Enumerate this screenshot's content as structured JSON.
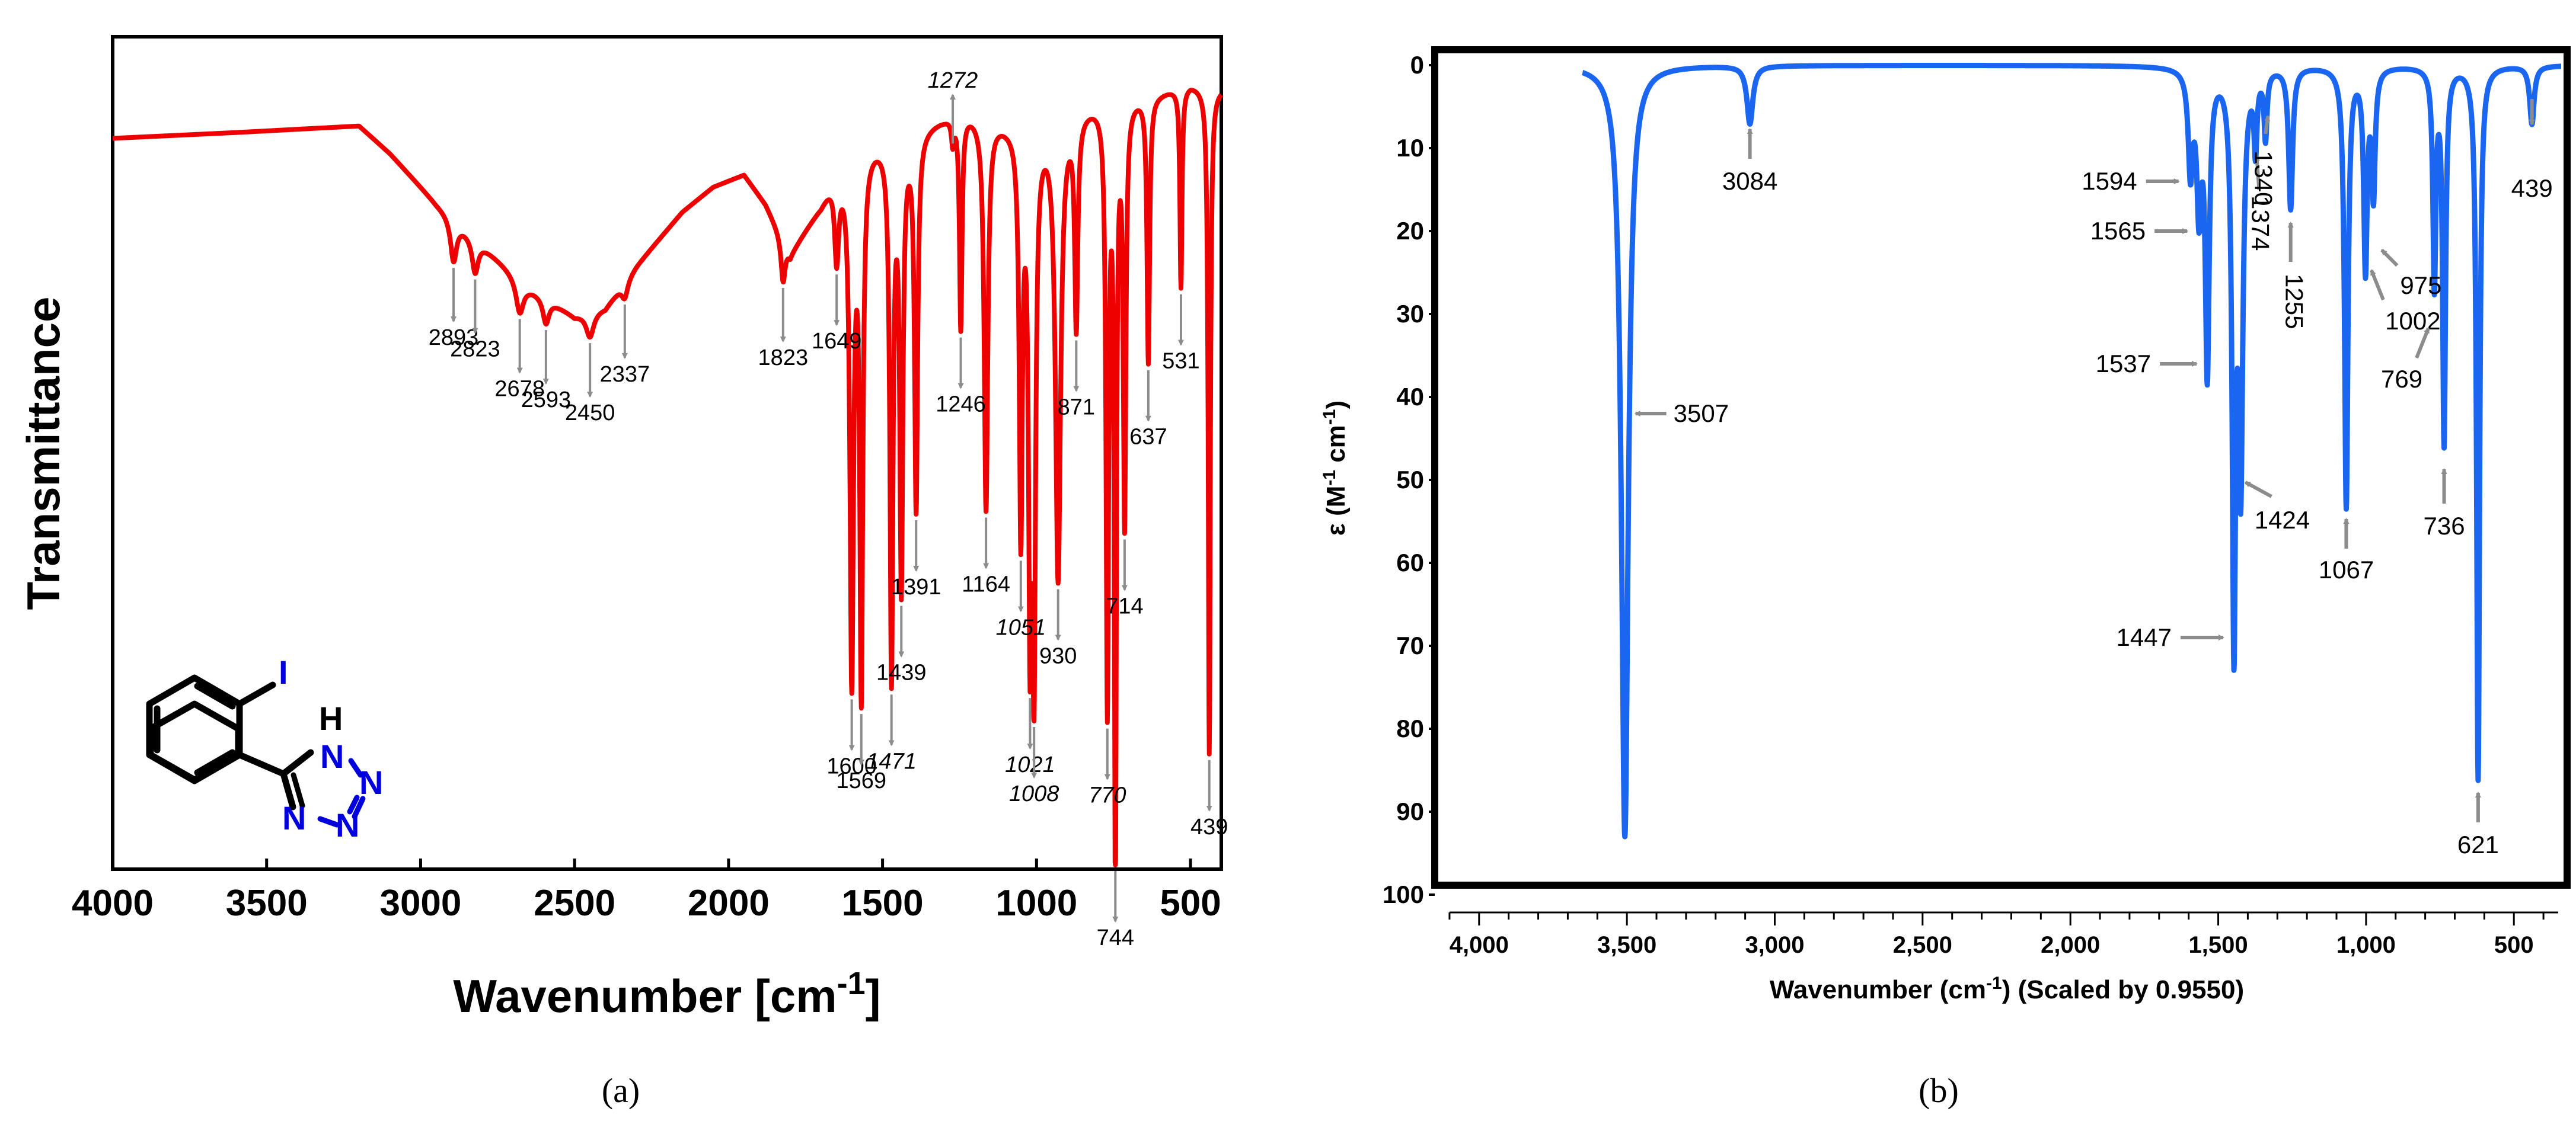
{
  "chart_data": [
    {
      "type": "line",
      "panel_caption": "(a)",
      "title": "",
      "xlabel": "Wavenumber [cm",
      "xlabel_superscript": "-1",
      "xlabel_suffix": "]",
      "ylabel": "Transmittance",
      "xlim": [
        4000,
        400
      ],
      "ylim": [
        0,
        1
      ],
      "x_ticks": [
        4000,
        3500,
        3000,
        2500,
        2000,
        1500,
        1000,
        500
      ],
      "series": [
        {
          "name": "FTIR spectrum",
          "color": "#ee0000",
          "baseline": [
            [
              4000,
              0.878
            ],
            [
              3600,
              0.885
            ],
            [
              3200,
              0.893
            ],
            [
              3100,
              0.86
            ],
            [
              2950,
              0.8
            ],
            [
              2800,
              0.75
            ],
            [
              2650,
              0.7
            ],
            [
              2500,
              0.665
            ],
            [
              2400,
              0.675
            ],
            [
              2300,
              0.725
            ],
            [
              2150,
              0.79
            ],
            [
              2050,
              0.82
            ],
            [
              1950,
              0.835
            ],
            [
              1880,
              0.8
            ],
            [
              1800,
              0.74
            ],
            [
              1700,
              0.8
            ],
            [
              1660,
              0.835
            ],
            [
              1600,
              0.86
            ],
            [
              1550,
              0.875
            ],
            [
              1500,
              0.88
            ],
            [
              1400,
              0.89
            ],
            [
              1300,
              0.905
            ],
            [
              1250,
              0.915
            ],
            [
              1200,
              0.91
            ],
            [
              1100,
              0.9
            ],
            [
              1000,
              0.895
            ],
            [
              900,
              0.91
            ],
            [
              800,
              0.925
            ],
            [
              700,
              0.93
            ],
            [
              600,
              0.935
            ],
            [
              500,
              0.945
            ],
            [
              440,
              0.94
            ],
            [
              400,
              0.94
            ]
          ],
          "bands": [
            [
              2893,
              0.05,
              12
            ],
            [
              2823,
              0.04,
              12
            ],
            [
              2678,
              0.04,
              15
            ],
            [
              2593,
              0.03,
              12
            ],
            [
              2450,
              0.03,
              15
            ],
            [
              2337,
              0.02,
              12
            ],
            [
              1823,
              0.05,
              8
            ],
            [
              1649,
              0.1,
              8
            ],
            [
              1600,
              0.62,
              7
            ],
            [
              1569,
              0.64,
              6
            ],
            [
              1471,
              0.64,
              6
            ],
            [
              1439,
              0.53,
              6
            ],
            [
              1391,
              0.45,
              6
            ],
            [
              1272,
              0.03,
              5
            ],
            [
              1246,
              0.26,
              5
            ],
            [
              1164,
              0.47,
              7
            ],
            [
              1051,
              0.48,
              6
            ],
            [
              1021,
              0.55,
              6
            ],
            [
              1008,
              0.6,
              6
            ],
            [
              930,
              0.55,
              10
            ],
            [
              871,
              0.25,
              6
            ],
            [
              770,
              0.72,
              5
            ],
            [
              744,
              0.93,
              4
            ],
            [
              714,
              0.5,
              5
            ],
            [
              637,
              0.32,
              5
            ],
            [
              531,
              0.24,
              4
            ],
            [
              439,
              0.8,
              4
            ]
          ]
        }
      ],
      "peak_labels": [
        {
          "text": "2893",
          "x": 2893
        },
        {
          "text": "2823",
          "x": 2823
        },
        {
          "text": "2678",
          "x": 2678
        },
        {
          "text": "2593",
          "x": 2593
        },
        {
          "text": "2450",
          "x": 2450
        },
        {
          "text": "2337",
          "x": 2337
        },
        {
          "text": "1823",
          "x": 1823
        },
        {
          "text": "1649",
          "x": 1649
        },
        {
          "text": "1600",
          "x": 1600
        },
        {
          "text": "1569",
          "x": 1569
        },
        {
          "text": "1471",
          "x": 1471,
          "italic": true
        },
        {
          "text": "1439",
          "x": 1439
        },
        {
          "text": "1391",
          "x": 1391
        },
        {
          "text": "1272",
          "x": 1272,
          "italic": true
        },
        {
          "text": "1246",
          "x": 1246
        },
        {
          "text": "1164",
          "x": 1164
        },
        {
          "text": "1051",
          "x": 1051,
          "italic": true
        },
        {
          "text": "1021",
          "x": 1021,
          "italic": true
        },
        {
          "text": "1008",
          "x": 1008,
          "italic": true
        },
        {
          "text": "930",
          "x": 930
        },
        {
          "text": "871",
          "x": 871
        },
        {
          "text": "770",
          "x": 770,
          "italic": true
        },
        {
          "text": "744",
          "x": 744
        },
        {
          "text": "714",
          "x": 714
        },
        {
          "text": "637",
          "x": 637
        },
        {
          "text": "531",
          "x": 531
        },
        {
          "text": "439",
          "x": 439
        }
      ],
      "molecule": {
        "substituent_label": "I",
        "nh_label": "H",
        "n_labels": [
          "N",
          "N",
          "N",
          "N"
        ]
      }
    },
    {
      "type": "line",
      "panel_caption": "(b)",
      "title": "",
      "xlabel": "Wavenumber (cm",
      "xlabel_superscript": "-1",
      "xlabel_suffix": ") (Scaled by 0.9550)",
      "ylabel_prefix": "ε (M",
      "ylabel_mid": " cm",
      "ylabel_suffix": ")",
      "ylabel_superscript": "-1",
      "xlim": [
        4150,
        320
      ],
      "ylim": [
        100,
        0
      ],
      "x_ticks": [
        4000,
        3500,
        3000,
        2500,
        2000,
        1500,
        1000,
        500
      ],
      "x_tick_labels": [
        "4,000",
        "3,500",
        "3,000",
        "2,500",
        "2,000",
        "1,500",
        "1,000",
        "500"
      ],
      "y_ticks": [
        0,
        10,
        20,
        30,
        40,
        50,
        60,
        70,
        80,
        90,
        100
      ],
      "series": [
        {
          "name": "Computed IR spectrum",
          "color": "#1a66f0",
          "x_range": [
            3650,
            340
          ],
          "bands": [
            [
              3507,
              93,
              14
            ],
            [
              3084,
              7,
              12
            ],
            [
              1594,
              12,
              9
            ],
            [
              1565,
              16,
              9
            ],
            [
              1537,
              36,
              8
            ],
            [
              1447,
              66,
              7
            ],
            [
              1424,
              48,
              9
            ],
            [
              1374,
              9,
              6
            ],
            [
              1340,
              8,
              6
            ],
            [
              1255,
              17,
              8
            ],
            [
              1067,
              53,
              7
            ],
            [
              1002,
              24,
              7
            ],
            [
              975,
              15,
              7
            ],
            [
              769,
              26,
              6
            ],
            [
              736,
              45,
              6
            ],
            [
              621,
              86,
              6
            ],
            [
              439,
              7,
              9
            ]
          ]
        }
      ],
      "peak_labels": [
        {
          "text": "3507",
          "x": 3507,
          "y": 42
        },
        {
          "text": "3084",
          "x": 3084,
          "y": 7
        },
        {
          "text": "1594",
          "x": 1594,
          "y": 14
        },
        {
          "text": "1565",
          "x": 1565,
          "y": 20
        },
        {
          "text": "1537",
          "x": 1537,
          "y": 36
        },
        {
          "text": "1447",
          "x": 1447,
          "y": 69
        },
        {
          "text": "1424",
          "x": 1424,
          "y": 50
        },
        {
          "text": "1374",
          "x": 1374,
          "y": 10
        },
        {
          "text": "1340",
          "x": 1340,
          "y": 6
        },
        {
          "text": "1255",
          "x": 1255,
          "y": 18
        },
        {
          "text": "1067",
          "x": 1067,
          "y": 54
        },
        {
          "text": "1002",
          "x": 1002,
          "y": 24
        },
        {
          "text": "975",
          "x": 975,
          "y": 22
        },
        {
          "text": "769",
          "x": 769,
          "y": 31
        },
        {
          "text": "736",
          "x": 736,
          "y": 48
        },
        {
          "text": "621",
          "x": 621,
          "y": 87
        },
        {
          "text": "439",
          "x": 439,
          "y": 8
        }
      ]
    }
  ]
}
